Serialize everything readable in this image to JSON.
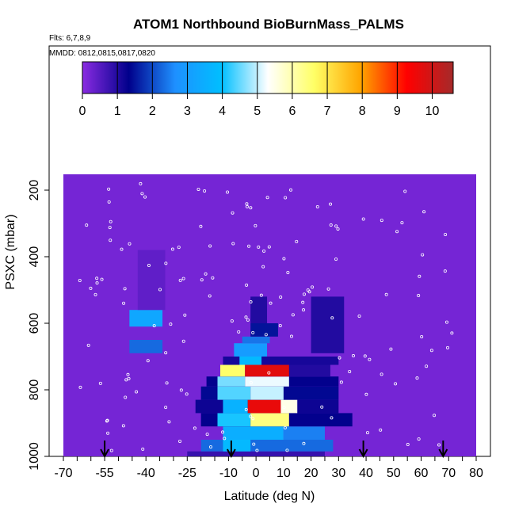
{
  "chart_data": {
    "type": "heatmap",
    "title": "ATOM1 Northbound BioBurnMass_PALMS",
    "subtitle_flights": "Flts: 6,7,8,9",
    "subtitle_dates": "MMDD: 0812,0815,0817,0820",
    "xlabel": "Latitude (deg N)",
    "ylabel": "PSXC (mbar)",
    "xlim": [
      -70,
      80
    ],
    "ylim": [
      1000,
      0
    ],
    "x_ticks": [
      -70,
      -55,
      -40,
      -25,
      -10,
      0,
      10,
      20,
      30,
      40,
      50,
      60,
      70,
      80
    ],
    "x_minor_step": 5,
    "y_ticks": [
      200,
      400,
      600,
      800,
      1000
    ],
    "colorbar": {
      "range": [
        0,
        10.6
      ],
      "ticks": [
        0,
        1,
        2,
        3,
        4,
        5,
        6,
        7,
        8,
        9,
        10
      ],
      "colors": [
        "#8a2be2",
        "#00008b",
        "#1e90ff",
        "#00bfff",
        "#ffffff",
        "#ffff66",
        "#ffa500",
        "#ff0000",
        "#a52a2a"
      ]
    },
    "background_value": 0.2,
    "cells": [
      {
        "lat": [
          -25,
          25
        ],
        "p": [
          1000,
          985
        ],
        "v": 0.8
      },
      {
        "lat": [
          -20,
          28
        ],
        "p": [
          985,
          950
        ],
        "v": 2.3
      },
      {
        "lat": [
          -12,
          -2
        ],
        "p": [
          985,
          950
        ],
        "v": 3.8
      },
      {
        "lat": [
          -12,
          10
        ],
        "p": [
          950,
          910
        ],
        "v": 3.5
      },
      {
        "lat": [
          10,
          25
        ],
        "p": [
          950,
          910
        ],
        "v": 2.5
      },
      {
        "lat": [
          -20,
          35
        ],
        "p": [
          910,
          870
        ],
        "v": 1.3
      },
      {
        "lat": [
          -14,
          -2
        ],
        "p": [
          910,
          870
        ],
        "v": 4.1
      },
      {
        "lat": [
          -2,
          12
        ],
        "p": [
          910,
          870
        ],
        "v": 6.4
      },
      {
        "lat": [
          -22,
          30
        ],
        "p": [
          870,
          830
        ],
        "v": 1.2
      },
      {
        "lat": [
          -12,
          -3
        ],
        "p": [
          870,
          830
        ],
        "v": 3.6
      },
      {
        "lat": [
          -3,
          9
        ],
        "p": [
          870,
          830
        ],
        "v": 9.6
      },
      {
        "lat": [
          9,
          15
        ],
        "p": [
          870,
          830
        ],
        "v": 5.5
      },
      {
        "lat": [
          -20,
          30
        ],
        "p": [
          830,
          790
        ],
        "v": 1.4
      },
      {
        "lat": [
          -14,
          -2
        ],
        "p": [
          830,
          790
        ],
        "v": 4.4
      },
      {
        "lat": [
          -2,
          10
        ],
        "p": [
          830,
          790
        ],
        "v": 5.0
      },
      {
        "lat": [
          -18,
          30
        ],
        "p": [
          790,
          760
        ],
        "v": 1.3
      },
      {
        "lat": [
          -14,
          -4
        ],
        "p": [
          790,
          760
        ],
        "v": 4.6
      },
      {
        "lat": [
          -4,
          12
        ],
        "p": [
          790,
          760
        ],
        "v": 5.2
      },
      {
        "lat": [
          -13,
          27
        ],
        "p": [
          760,
          725
        ],
        "v": 1.0
      },
      {
        "lat": [
          -13,
          -4
        ],
        "p": [
          760,
          725
        ],
        "v": 6.6
      },
      {
        "lat": [
          -4,
          12
        ],
        "p": [
          760,
          725
        ],
        "v": 9.7
      },
      {
        "lat": [
          -12,
          30
        ],
        "p": [
          725,
          700
        ],
        "v": 1.1
      },
      {
        "lat": [
          -6,
          2
        ],
        "p": [
          725,
          700
        ],
        "v": 3.8
      },
      {
        "lat": [
          -8,
          4
        ],
        "p": [
          700,
          660
        ],
        "v": 3.0
      },
      {
        "lat": [
          -5,
          5
        ],
        "p": [
          660,
          640
        ],
        "v": 2.4
      },
      {
        "lat": [
          -2,
          8
        ],
        "p": [
          640,
          600
        ],
        "v": 1.5
      },
      {
        "lat": [
          -2,
          4
        ],
        "p": [
          600,
          520
        ],
        "v": 1.0
      },
      {
        "lat": [
          20,
          32
        ],
        "p": [
          690,
          520
        ],
        "v": 1.0
      },
      {
        "lat": [
          -46,
          -34
        ],
        "p": [
          690,
          650
        ],
        "v": 2.3
      },
      {
        "lat": [
          -46,
          -34
        ],
        "p": [
          610,
          560
        ],
        "v": 3.3
      },
      {
        "lat": [
          -43,
          -33
        ],
        "p": [
          560,
          380
        ],
        "v": 0.4
      }
    ],
    "markers": [
      -55,
      -9,
      39,
      68
    ]
  }
}
